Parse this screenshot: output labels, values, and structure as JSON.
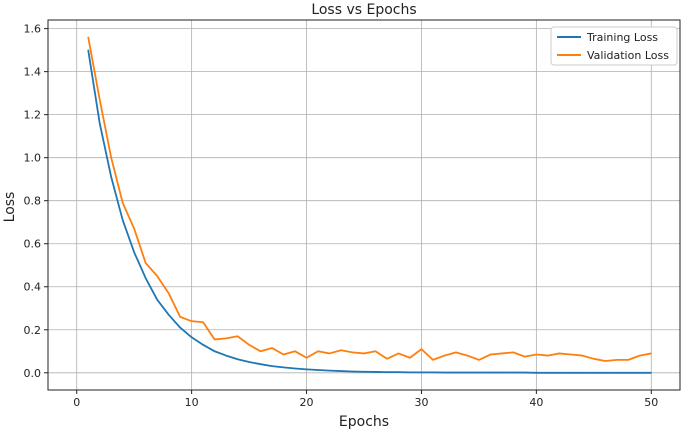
{
  "chart_data": {
    "type": "line",
    "title": "Loss vs Epochs",
    "xlabel": "Epochs",
    "ylabel": "Loss",
    "xlim": [
      -2.5,
      52.5
    ],
    "ylim": [
      -0.08,
      1.64
    ],
    "xticks": [
      0,
      10,
      20,
      30,
      40,
      50
    ],
    "yticks": [
      0.0,
      0.2,
      0.4,
      0.6,
      0.8,
      1.0,
      1.2,
      1.4,
      1.6
    ],
    "ytick_labels": [
      "0.0",
      "0.2",
      "0.4",
      "0.6",
      "0.8",
      "1.0",
      "1.2",
      "1.4",
      "1.6"
    ],
    "grid": true,
    "legend_position": "top-right",
    "x": [
      1,
      2,
      3,
      4,
      5,
      6,
      7,
      8,
      9,
      10,
      11,
      12,
      13,
      14,
      15,
      16,
      17,
      18,
      19,
      20,
      21,
      22,
      23,
      24,
      25,
      26,
      27,
      28,
      29,
      30,
      31,
      32,
      33,
      34,
      35,
      36,
      37,
      38,
      39,
      40,
      41,
      42,
      43,
      44,
      45,
      46,
      47,
      48,
      49,
      50
    ],
    "series": [
      {
        "name": "Training Loss",
        "color": "#1f77b4",
        "values": [
          1.5,
          1.16,
          0.91,
          0.71,
          0.56,
          0.44,
          0.34,
          0.27,
          0.21,
          0.165,
          0.13,
          0.1,
          0.08,
          0.063,
          0.05,
          0.04,
          0.031,
          0.025,
          0.02,
          0.016,
          0.013,
          0.01,
          0.008,
          0.006,
          0.005,
          0.004,
          0.003,
          0.003,
          0.002,
          0.002,
          0.002,
          0.001,
          0.001,
          0.001,
          0.001,
          0.001,
          0.001,
          0.001,
          0.001,
          0.0,
          0.0,
          0.0,
          0.0,
          0.0,
          0.0,
          0.0,
          0.0,
          0.0,
          0.0,
          0.0
        ]
      },
      {
        "name": "Validation Loss",
        "color": "#ff7f0e",
        "values": [
          1.56,
          1.27,
          1.0,
          0.79,
          0.67,
          0.51,
          0.45,
          0.37,
          0.26,
          0.24,
          0.235,
          0.155,
          0.16,
          0.17,
          0.13,
          0.1,
          0.115,
          0.085,
          0.1,
          0.07,
          0.1,
          0.09,
          0.105,
          0.095,
          0.09,
          0.1,
          0.065,
          0.09,
          0.07,
          0.11,
          0.06,
          0.08,
          0.095,
          0.08,
          0.06,
          0.085,
          0.09,
          0.095,
          0.075,
          0.085,
          0.08,
          0.09,
          0.085,
          0.08,
          0.065,
          0.055,
          0.06,
          0.06,
          0.08,
          0.09
        ]
      }
    ]
  }
}
